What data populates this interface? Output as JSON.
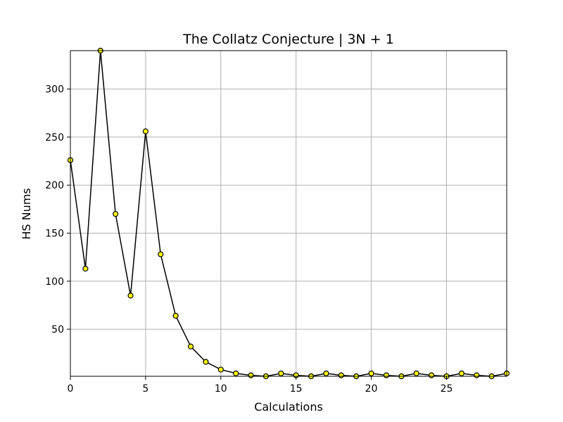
{
  "chart_data": {
    "type": "line",
    "title": "The Collatz Conjecture | 3N + 1",
    "xlabel": "Calculations",
    "ylabel": "HS Nums",
    "xlim": [
      0,
      29
    ],
    "ylim": [
      1,
      340
    ],
    "x_ticks": [
      0,
      5,
      10,
      15,
      20,
      25
    ],
    "y_ticks": [
      50,
      100,
      150,
      200,
      250,
      300
    ],
    "grid": true,
    "marker_fill": "#ffff00",
    "line_color": "#000000",
    "series": [
      {
        "x": [
          0,
          1,
          2,
          3,
          4,
          5,
          6,
          7,
          8,
          9,
          10,
          11,
          12,
          13,
          14,
          15,
          16,
          17,
          18,
          19,
          20,
          21,
          22,
          23,
          24,
          25,
          26,
          27,
          28,
          29
        ],
        "y": [
          226,
          113,
          340,
          170,
          85,
          256,
          128,
          64,
          32,
          16,
          8,
          4,
          2,
          1,
          4,
          2,
          1,
          4,
          2,
          1,
          4,
          2,
          1,
          4,
          2,
          1,
          4,
          2,
          1,
          4
        ]
      }
    ]
  }
}
